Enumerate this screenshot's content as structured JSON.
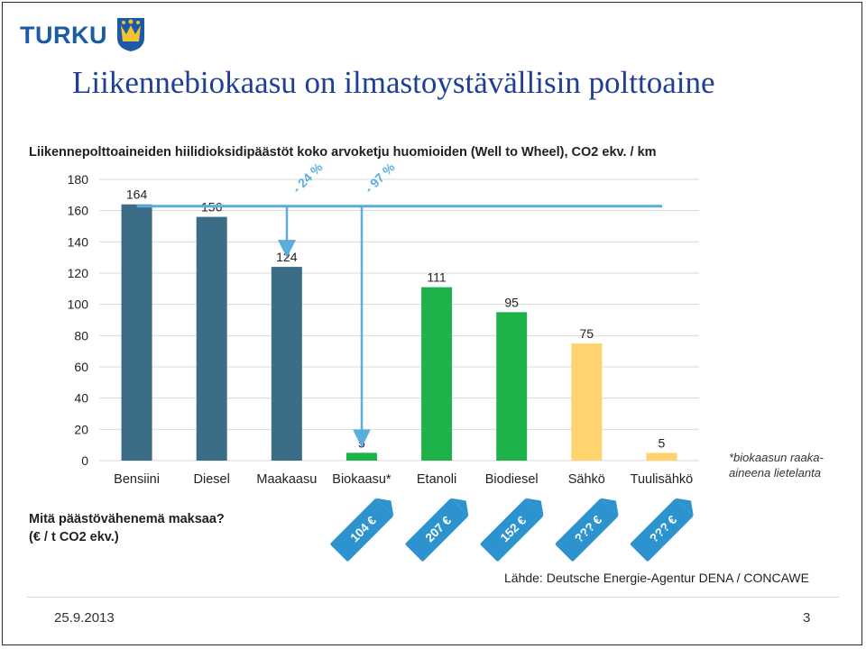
{
  "logo": {
    "text": "TURKU",
    "crest_icon": "turku-crest-icon"
  },
  "slide": {
    "title": "Liikennebiokaasu on ilmastoystävällisin polttoaine"
  },
  "chart_data": {
    "type": "bar",
    "title": "Liikennepolttoaineiden hiilidioksidipäästöt koko arvoketju huomioiden (Well to Wheel), CO2 ekv. / km",
    "categories": [
      "Bensiini",
      "Diesel",
      "Maakaasu",
      "Biokaasu*",
      "Etanoli",
      "Biodiesel",
      "Sähkö",
      "Tuulisähkö"
    ],
    "values": [
      164,
      156,
      124,
      5,
      111,
      95,
      75,
      5
    ],
    "colors": [
      "#3b6d86",
      "#3b6d86",
      "#3b6d86",
      "#1fb24a",
      "#1fb24a",
      "#1fb24a",
      "#ffd36e",
      "#ffd36e"
    ],
    "ylim": [
      0,
      180
    ],
    "yticks": [
      0,
      20,
      40,
      60,
      80,
      100,
      120,
      140,
      160,
      180
    ],
    "grid": true,
    "reference_line_value": 164,
    "annotations": [
      {
        "label": "- 24 %",
        "from_category": "Bensiini",
        "to_category": "Maakaasu"
      },
      {
        "label": "- 97 %",
        "from_category": "Bensiini",
        "to_category": "Biokaasu*"
      }
    ],
    "footnote": "*biokaasun raaka-aineena lietelanta",
    "cost_question": "Mitä päästövähenemä maksaa?",
    "cost_unit": "(€ / t CO2 ekv.)",
    "cost_tags": [
      {
        "category": "Biokaasu*",
        "label": "104 €"
      },
      {
        "category": "Etanoli",
        "label": "207 €"
      },
      {
        "category": "Biodiesel",
        "label": "152 €"
      },
      {
        "category": "Sähkö",
        "label": "??? €"
      },
      {
        "category": "Tuulisähkö",
        "label": "??? €"
      }
    ],
    "source": "Lähde: Deutsche Energie-Agentur DENA / CONCAWE"
  },
  "footer": {
    "date": "25.9.2013",
    "page": "3"
  }
}
